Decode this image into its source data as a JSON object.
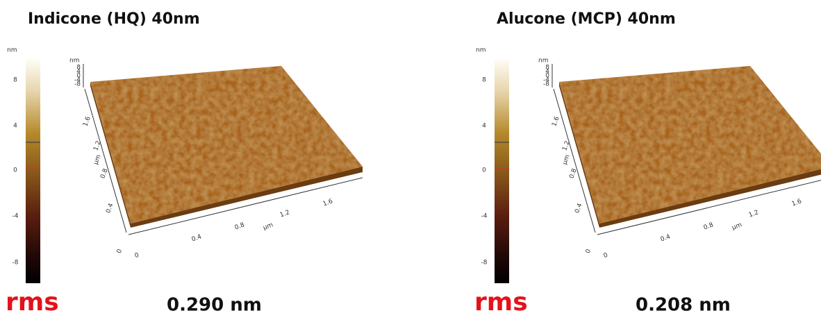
{
  "panels": [
    {
      "title": "Indicone (HQ) 40nm",
      "rms_label": "rms",
      "rms_value": "0.290 nm",
      "colorbar": {
        "unit": "nm",
        "ticks": [
          "8",
          "4",
          "0",
          "-4",
          "-8"
        ]
      },
      "z_axis": {
        "unit": "nm",
        "ticks": [
          "8",
          "4",
          "0",
          "-4",
          "-8"
        ]
      },
      "y_axis": {
        "unit": "μm",
        "ticks": [
          "0",
          "0.4",
          "0.8",
          "1.2",
          "1.6"
        ]
      },
      "x_axis": {
        "unit": "μm",
        "ticks": [
          "0",
          "0.4",
          "0.8",
          "1.2",
          "1.6"
        ]
      }
    },
    {
      "title": "Alucone (MCP) 40nm",
      "rms_label": "rms",
      "rms_value": "0.208 nm",
      "colorbar": {
        "unit": "nm",
        "ticks": [
          "8",
          "4",
          "0",
          "-4",
          "-8"
        ]
      },
      "z_axis": {
        "unit": "nm",
        "ticks": [
          "8",
          "4",
          "0",
          "-4",
          "-8"
        ]
      },
      "y_axis": {
        "unit": "μm",
        "ticks": [
          "0",
          "0.4",
          "0.8",
          "1.2",
          "1.6"
        ]
      },
      "x_axis": {
        "unit": "μm",
        "ticks": [
          "0",
          "0.4",
          "0.8",
          "1.2",
          "1.6"
        ]
      }
    }
  ]
}
